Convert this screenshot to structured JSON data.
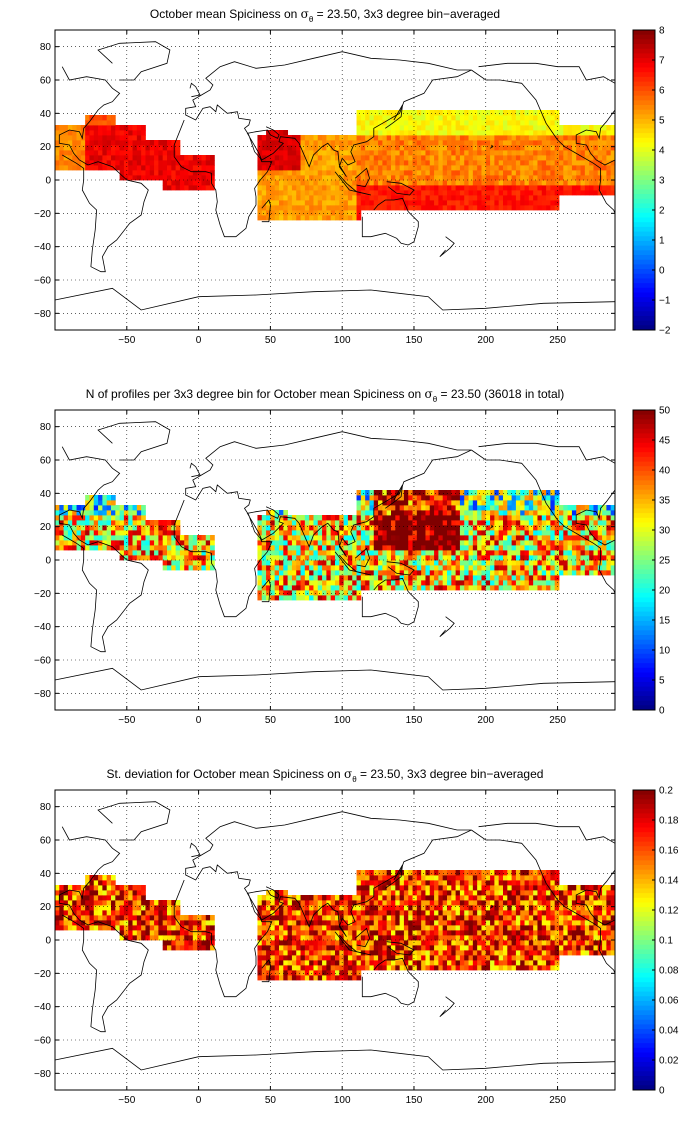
{
  "panels": [
    {
      "title_prefix": "October mean Spiciness on ",
      "title_sigma": "σ",
      "title_sub": "θ",
      "title_suffix": " = 23.50, 3x3 degree bin−averaged",
      "colorbar_ticks": [
        "8",
        "7",
        "6",
        "5",
        "4",
        "3",
        "2",
        "1",
        "0",
        "−1",
        "−2"
      ],
      "colorbar_range": [
        -2,
        8
      ],
      "field": "spiciness"
    },
    {
      "title_prefix": "N of profiles per 3x3 degree bin for October mean Spiciness on ",
      "title_sigma": "σ",
      "title_sub": "θ",
      "title_suffix": " = 23.50 (36018 in total)",
      "colorbar_ticks": [
        "50",
        "45",
        "40",
        "35",
        "30",
        "25",
        "20",
        "15",
        "10",
        "5",
        "0"
      ],
      "colorbar_range": [
        0,
        50
      ],
      "field": "count"
    },
    {
      "title_prefix": "St. deviation for October mean Spiciness on ",
      "title_sigma": "σ",
      "title_sub": "θ",
      "title_suffix": " = 23.50, 3x3 degree bin−averaged",
      "colorbar_ticks": [
        "0.2",
        "0.18",
        "0.16",
        "0.14",
        "0.12",
        "0.1",
        "0.08",
        "0.06",
        "0.04",
        "0.02",
        "0"
      ],
      "colorbar_range": [
        0,
        0.2
      ],
      "field": "std"
    }
  ],
  "map": {
    "x_ticks": [
      "−50",
      "0",
      "50",
      "100",
      "150",
      "200",
      "250"
    ],
    "y_ticks": [
      "80",
      "60",
      "40",
      "20",
      "0",
      "−20",
      "−40",
      "−60",
      "−80"
    ],
    "lon_range": [
      -100,
      290
    ],
    "lat_range": [
      -90,
      90
    ],
    "grid": "dotted",
    "colormap": "jet"
  }
}
